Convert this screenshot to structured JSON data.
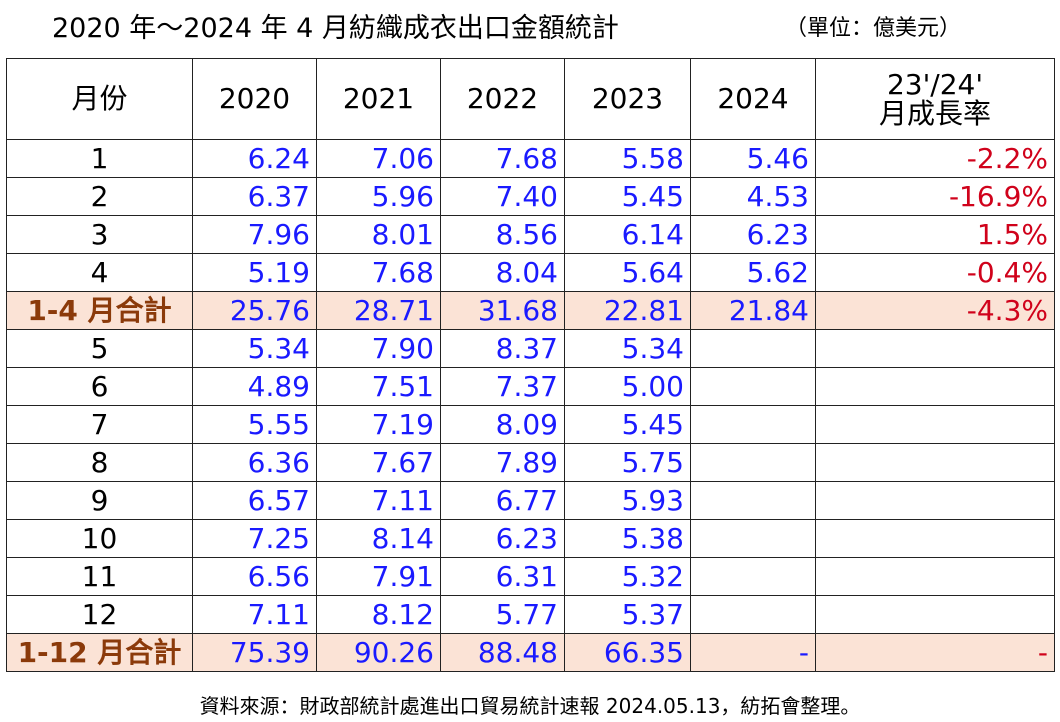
{
  "header": {
    "title": "2020 年～2024 年 4 月紡織成衣出口金額統計",
    "unit": "（單位：億美元）"
  },
  "table": {
    "columns": [
      "月份",
      "2020",
      "2021",
      "2022",
      "2023",
      "2024",
      [
        "23'/24'",
        "月成長率"
      ]
    ],
    "rows": [
      {
        "cells": [
          "1",
          "6.24",
          "7.06",
          "7.68",
          "5.58",
          "5.46",
          "-2.2%"
        ]
      },
      {
        "cells": [
          "2",
          "6.37",
          "5.96",
          "7.40",
          "5.45",
          "4.53",
          "-16.9%"
        ]
      },
      {
        "cells": [
          "3",
          "7.96",
          "8.01",
          "8.56",
          "6.14",
          "6.23",
          "1.5%"
        ]
      },
      {
        "cells": [
          "4",
          "5.19",
          "7.68",
          "8.04",
          "5.64",
          "5.62",
          "-0.4%"
        ]
      },
      {
        "cells": [
          "1-4 月合計",
          "25.76",
          "28.71",
          "31.68",
          "22.81",
          "21.84",
          "-4.3%"
        ],
        "highlight": true
      },
      {
        "cells": [
          "5",
          "5.34",
          "7.90",
          "8.37",
          "5.34",
          null,
          null
        ]
      },
      {
        "cells": [
          "6",
          "4.89",
          "7.51",
          "7.37",
          "5.00",
          null,
          null
        ]
      },
      {
        "cells": [
          "7",
          "5.55",
          "7.19",
          "8.09",
          "5.45",
          null,
          null
        ]
      },
      {
        "cells": [
          "8",
          "6.36",
          "7.67",
          "7.89",
          "5.75",
          null,
          null
        ]
      },
      {
        "cells": [
          "9",
          "6.57",
          "7.11",
          "6.77",
          "5.93",
          null,
          null
        ]
      },
      {
        "cells": [
          "10",
          "7.25",
          "8.14",
          "6.23",
          "5.38",
          null,
          null
        ]
      },
      {
        "cells": [
          "11",
          "6.56",
          "7.91",
          "6.31",
          "5.32",
          null,
          null
        ]
      },
      {
        "cells": [
          "12",
          "7.11",
          "8.12",
          "5.77",
          "5.37",
          null,
          null
        ]
      },
      {
        "cells": [
          "1-12 月合計",
          "75.39",
          "90.26",
          "88.48",
          "66.35",
          "-",
          "-"
        ],
        "highlight": true
      }
    ]
  },
  "footer": "資料來源：財政部統計處進出口貿易統計速報 2024.05.13，紡拓會整理。"
}
